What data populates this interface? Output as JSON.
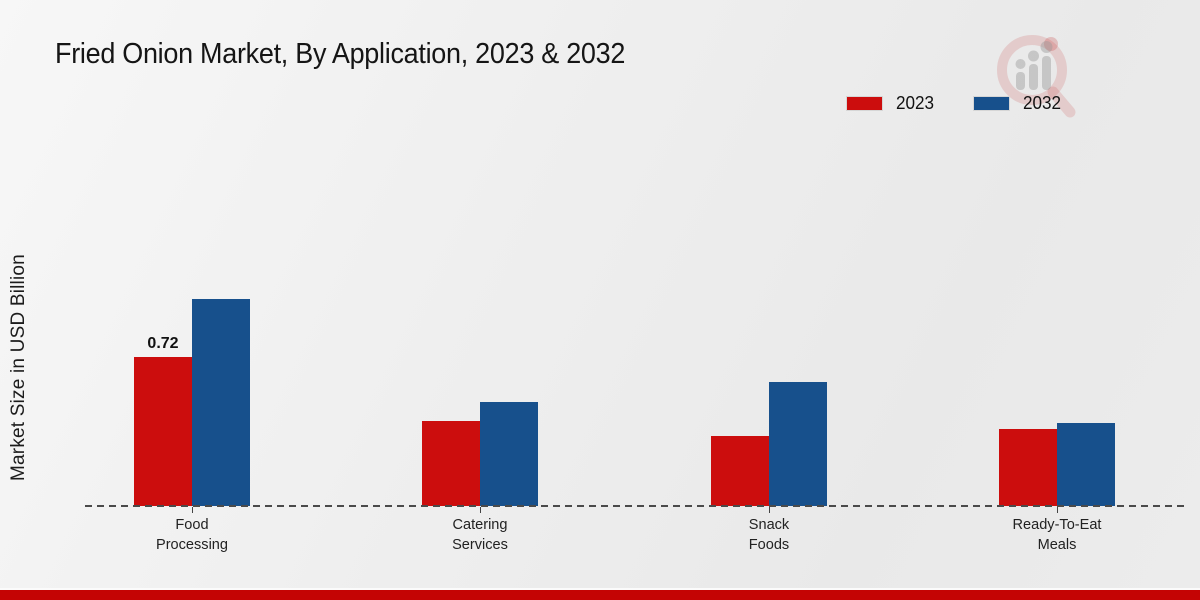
{
  "header": {
    "title": "Fried Onion Market, By Application, 2023 & 2032"
  },
  "branding": {
    "logo_name": "market-research-watermark-logo",
    "footer_bar_color": "#c40404"
  },
  "chart_data": {
    "type": "bar",
    "title": "Fried Onion Market, By Application, 2023 & 2032",
    "xlabel": "",
    "ylabel": "Market Size in USD Billion",
    "categories": [
      "Food Processing",
      "Catering Services",
      "Snack Foods",
      "Ready-To-Eat Meals"
    ],
    "series": [
      {
        "name": "2023",
        "color": "#cc0d0d",
        "values": [
          0.72,
          0.41,
          0.34,
          0.37
        ]
      },
      {
        "name": "2032",
        "color": "#17508c",
        "values": [
          1.0,
          0.5,
          0.6,
          0.4
        ]
      }
    ],
    "annotations": [
      {
        "series_index": 0,
        "category_index": 0,
        "text": "0.72"
      }
    ],
    "ylim": [
      0,
      1.2
    ],
    "grid": false,
    "legend_position": "top-right",
    "baseline_style": "dashed"
  }
}
